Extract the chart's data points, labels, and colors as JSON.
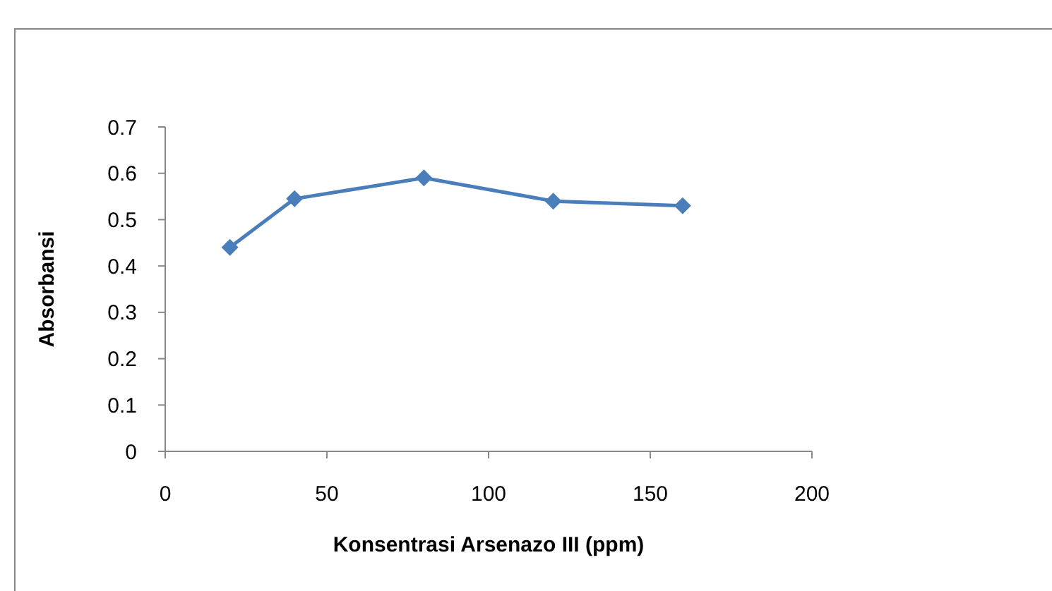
{
  "chart_data": {
    "type": "line",
    "xlabel": "Konsentrasi Arsenazo III (ppm)",
    "ylabel": "Absorbansi",
    "x": [
      20,
      40,
      80,
      120,
      160
    ],
    "series": [
      {
        "color": "#4a7ebb",
        "values": [
          0.44,
          0.545,
          0.59,
          0.54,
          0.53
        ]
      }
    ],
    "xlim": [
      0,
      200
    ],
    "xticks": [
      0,
      50,
      100,
      150,
      200
    ],
    "ylim": [
      0,
      0.7
    ],
    "yticks": [
      {
        "value": 0,
        "label": "0"
      },
      0.1,
      0.2,
      0.3,
      0.4,
      0.5,
      0.6,
      0.7
    ],
    "grid": false,
    "marker": "diamond",
    "line_style": "solid"
  }
}
